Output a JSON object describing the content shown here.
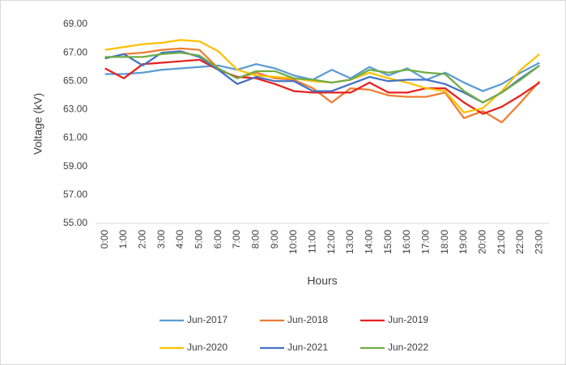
{
  "chart_data": {
    "type": "line",
    "y_label": "Voltage (kV)",
    "x_label": "Hours",
    "categories": [
      "0:00",
      "1:00",
      "2:00",
      "3:00",
      "4:00",
      "5:00",
      "6:00",
      "7:00",
      "8:00",
      "9:00",
      "10:00",
      "11:00",
      "12:00",
      "13:00",
      "14:00",
      "15:00",
      "16:00",
      "17:00",
      "18:00",
      "19:00",
      "20:00",
      "21:00",
      "22:00",
      "23:00"
    ],
    "ylim": [
      55,
      69
    ],
    "yticks": [
      {
        "value": 55,
        "label": "55.00"
      },
      {
        "value": 57,
        "label": "57.00"
      },
      {
        "value": 59,
        "label": "59.00"
      },
      {
        "value": 61,
        "label": "61.00"
      },
      {
        "value": 63,
        "label": "63.00"
      },
      {
        "value": 65,
        "label": "65.00"
      },
      {
        "value": 67,
        "label": "67.00"
      },
      {
        "value": 69,
        "label": "69.00"
      }
    ],
    "grid": false,
    "legend": "bottom",
    "series": [
      {
        "name": "Jun-2017",
        "color": "#5b9bd5",
        "values": [
          65.5,
          65.5,
          65.6,
          65.8,
          65.9,
          66.0,
          66.1,
          65.8,
          66.2,
          65.9,
          65.4,
          65.1,
          65.8,
          65.2,
          66.0,
          65.4,
          65.9,
          65.1,
          65.6,
          64.9,
          64.3,
          64.8,
          65.6,
          66.3
        ]
      },
      {
        "name": "Jun-2018",
        "color": "#ed7d31",
        "values": [
          66.6,
          66.9,
          67.0,
          67.2,
          67.3,
          67.2,
          65.9,
          65.2,
          65.6,
          65.2,
          65.1,
          64.5,
          63.5,
          64.5,
          64.4,
          64.0,
          63.9,
          63.9,
          64.2,
          62.4,
          62.9,
          62.1,
          63.5,
          65.0
        ]
      },
      {
        "name": "Jun-2019",
        "color": "#e8201c",
        "values": [
          65.9,
          65.2,
          66.2,
          66.3,
          66.4,
          66.5,
          65.8,
          65.3,
          65.2,
          64.8,
          64.3,
          64.2,
          64.2,
          64.2,
          64.9,
          64.2,
          64.2,
          64.5,
          64.5,
          63.5,
          62.7,
          63.2,
          64.0,
          64.9
        ]
      },
      {
        "name": "Jun-2020",
        "color": "#ffc000",
        "values": [
          67.2,
          67.4,
          67.6,
          67.7,
          67.9,
          67.8,
          67.1,
          65.8,
          65.4,
          65.3,
          65.2,
          65.0,
          64.9,
          65.1,
          65.6,
          65.2,
          64.9,
          64.5,
          64.3,
          62.8,
          63.1,
          64.3,
          65.8,
          66.9
        ]
      },
      {
        "name": "Jun-2021",
        "color": "#4472c4",
        "values": [
          66.6,
          66.9,
          66.1,
          67.0,
          67.1,
          66.7,
          65.8,
          64.8,
          65.3,
          65.0,
          65.0,
          64.3,
          64.3,
          64.8,
          65.3,
          65.0,
          65.1,
          65.1,
          64.8,
          64.2,
          63.5,
          64.2,
          65.2,
          66.1
        ]
      },
      {
        "name": "Jun-2022",
        "color": "#70ad47",
        "values": [
          66.7,
          66.7,
          66.7,
          66.9,
          67.0,
          66.8,
          65.9,
          65.2,
          65.7,
          65.7,
          65.2,
          65.1,
          64.9,
          65.1,
          65.8,
          65.6,
          65.8,
          65.6,
          65.5,
          64.3,
          63.5,
          64.2,
          65.1,
          66.1
        ]
      }
    ]
  }
}
